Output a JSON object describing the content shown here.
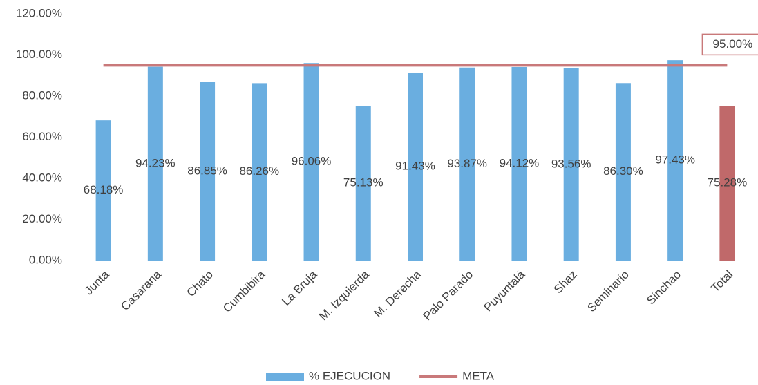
{
  "chart_data": {
    "type": "bar",
    "categories": [
      "Junta",
      "Casarana",
      "Chato",
      "Cumbibira",
      "La Bruja",
      "M. Izquierda",
      "M. Derecha",
      "Palo Parado",
      "Puyuntalá",
      "Shaz",
      "Seminario",
      "Sinchao",
      "Total"
    ],
    "series": [
      {
        "name": "% EJECUCION",
        "color": "#6aaee0",
        "colors": [
          "#6aaee0",
          "#6aaee0",
          "#6aaee0",
          "#6aaee0",
          "#6aaee0",
          "#6aaee0",
          "#6aaee0",
          "#6aaee0",
          "#6aaee0",
          "#6aaee0",
          "#6aaee0",
          "#6aaee0",
          "#c0696a"
        ],
        "values": [
          68.18,
          94.23,
          86.85,
          86.26,
          96.06,
          75.13,
          91.43,
          93.87,
          94.12,
          93.56,
          86.3,
          97.43,
          75.28
        ],
        "value_labels": [
          "68.18%",
          "94.23%",
          "86.85%",
          "86.26%",
          "96.06%",
          "75.13%",
          "91.43%",
          "93.87%",
          "94.12%",
          "93.56%",
          "86.30%",
          "97.43%",
          "75.28%"
        ]
      },
      {
        "name": "META",
        "type": "line",
        "color": "#c9797a",
        "values": [
          95,
          95,
          95,
          95,
          95,
          95,
          95,
          95,
          95,
          95,
          95,
          95,
          95
        ],
        "value_labels": [
          null,
          null,
          null,
          null,
          null,
          null,
          null,
          null,
          null,
          null,
          null,
          null,
          "95.00%"
        ]
      }
    ],
    "ylim": [
      0,
      120
    ],
    "yticks": [
      {
        "value": 0,
        "label": "0.00%"
      },
      {
        "value": 20,
        "label": "20.00%"
      },
      {
        "value": 40,
        "label": "40.00%"
      },
      {
        "value": 60,
        "label": "60.00%"
      },
      {
        "value": 80,
        "label": "80.00%"
      },
      {
        "value": 100,
        "label": "100.00%"
      },
      {
        "value": 120,
        "label": "120.00%"
      }
    ],
    "grid": false,
    "legend": "bottom"
  }
}
